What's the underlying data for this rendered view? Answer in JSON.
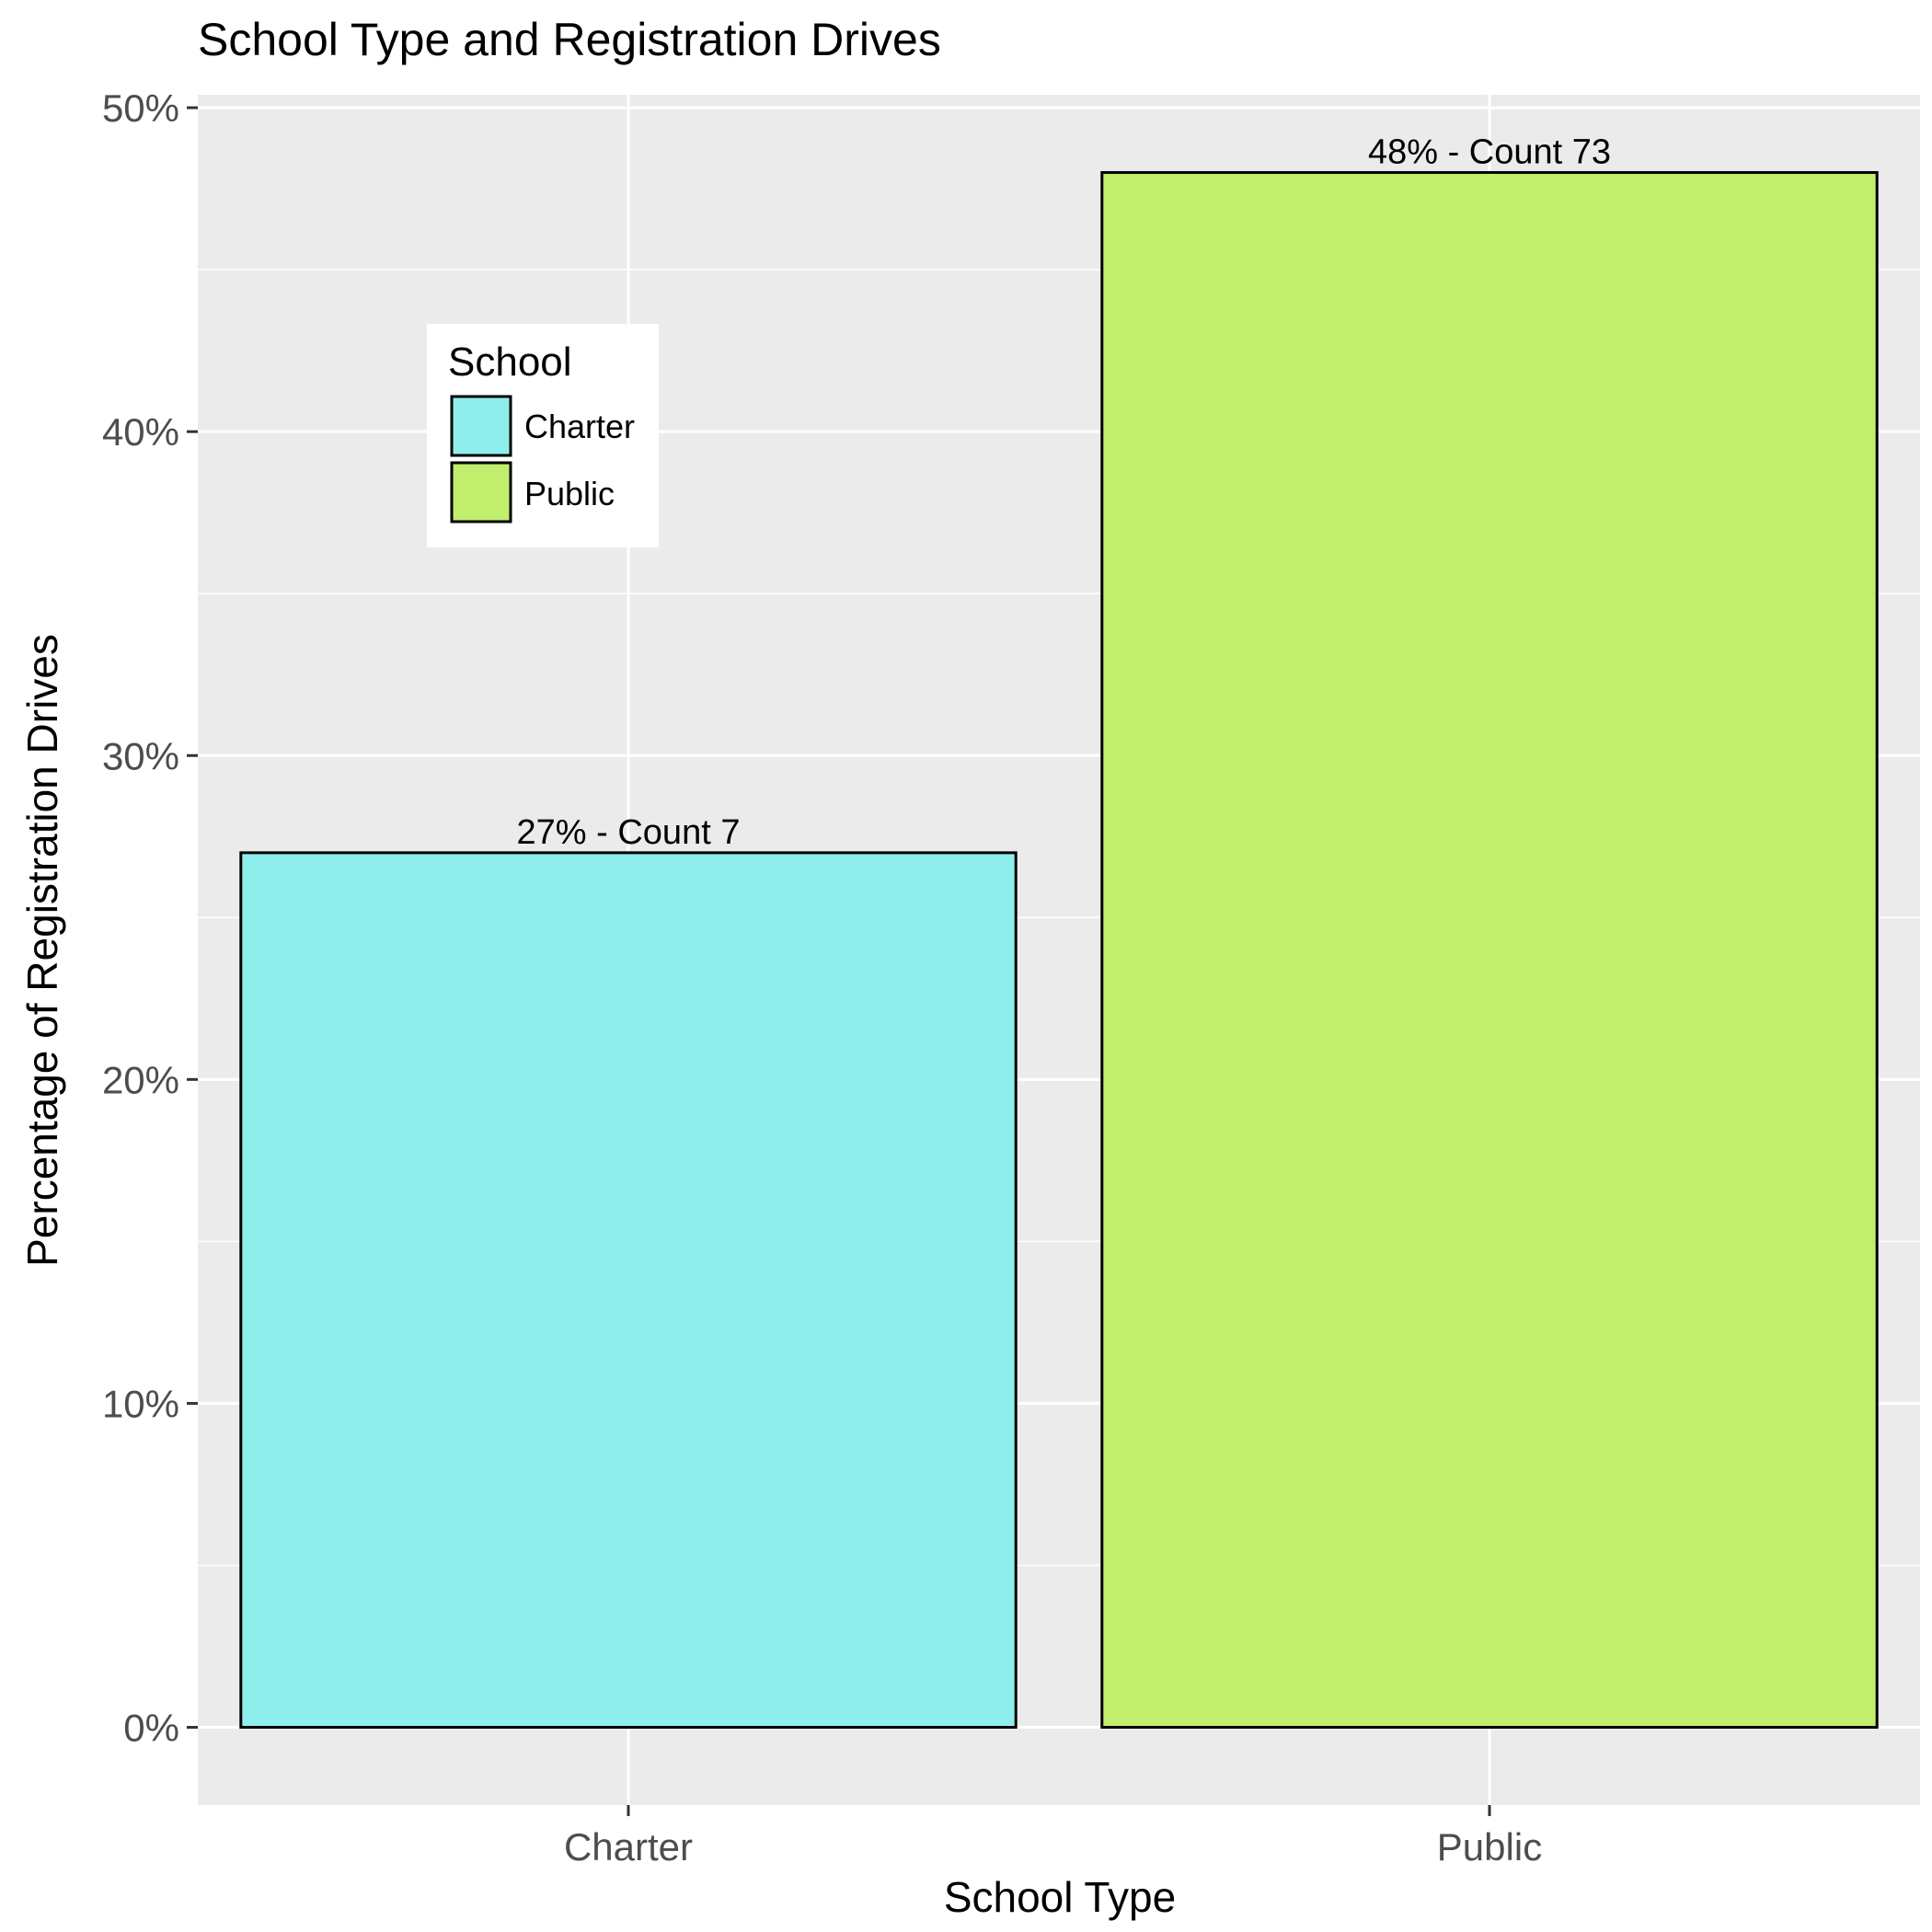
{
  "chart_data": {
    "type": "bar",
    "title": "School Type and Registration Drives",
    "xlabel": "School Type",
    "ylabel": "Percentage of Registration Drives",
    "categories": [
      "Charter",
      "Public"
    ],
    "values": [
      27,
      48
    ],
    "data_labels": [
      "27% - Count 7",
      "48% - Count 73"
    ],
    "y_ticks": [
      0,
      10,
      20,
      30,
      40,
      50
    ],
    "y_tick_labels": [
      "0%",
      "10%",
      "20%",
      "30%",
      "40%",
      "50%"
    ],
    "ylim": [
      -2.4,
      50.4
    ],
    "grid": true,
    "legend": {
      "title": "School",
      "placement": "inside-top-left",
      "entries": [
        "Charter",
        "Public"
      ]
    },
    "colors": {
      "Charter": "#8EEEEC",
      "Public": "#C1EE6C",
      "panel_background": "#EBEBEB",
      "grid": "#FFFFFF",
      "bar_outline": "#000000"
    }
  }
}
